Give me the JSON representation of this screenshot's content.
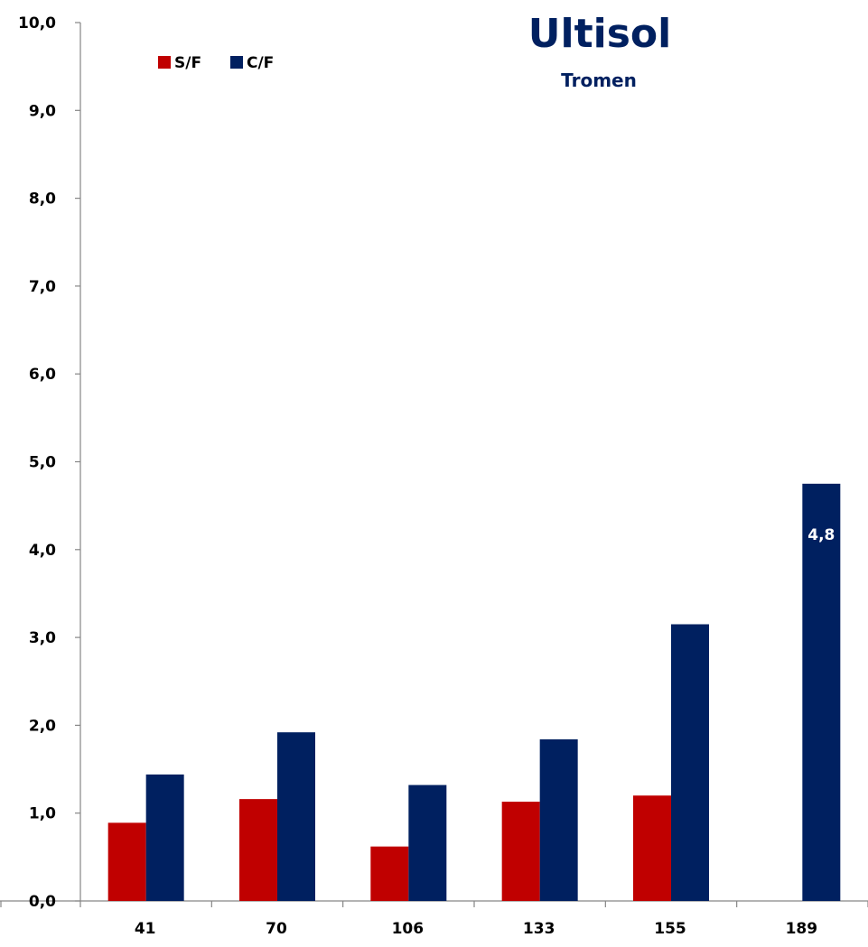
{
  "chart_data": {
    "type": "bar",
    "title": "Ultisol",
    "subtitle": "Tromen",
    "categories": [
      "41",
      "70",
      "106",
      "133",
      "155",
      "189"
    ],
    "series": [
      {
        "name": "S/F",
        "color": "#c00000",
        "values": [
          0.89,
          1.16,
          0.62,
          1.13,
          1.2,
          null
        ]
      },
      {
        "name": "C/F",
        "color": "#002060",
        "values": [
          1.44,
          1.92,
          1.32,
          1.84,
          3.15,
          4.75
        ]
      }
    ],
    "data_labels": [
      {
        "series": "C/F",
        "category": "189",
        "text": "4,8"
      }
    ],
    "ylim": [
      0,
      10
    ],
    "yticks": [
      "0,0",
      "1,0",
      "2,0",
      "3,0",
      "4,0",
      "5,0",
      "6,0",
      "7,0",
      "8,0",
      "9,0",
      "10,0"
    ],
    "xlabel": "",
    "ylabel": "",
    "grid": false,
    "legend_position": "top-left",
    "title_color": "#002060"
  }
}
